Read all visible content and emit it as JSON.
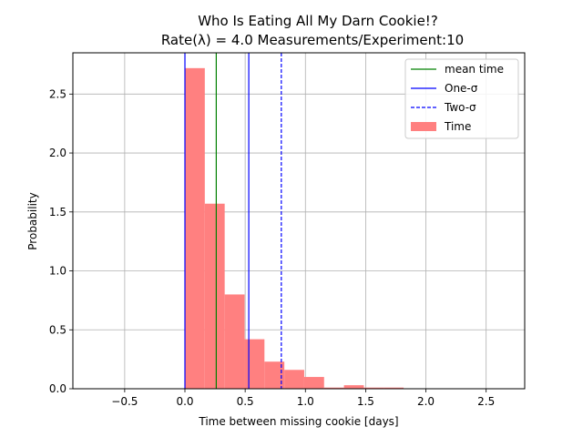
{
  "chart_data": {
    "type": "bar",
    "title": "Who Is Eating All My Darn Cookie!?",
    "subtitle": "Rate(λ) = 4.0  Measurements/Experiment:10",
    "xlabel": "Time between missing cookie [days]",
    "ylabel": "Probability",
    "xlim": [
      -0.93,
      2.82
    ],
    "ylim": [
      0,
      2.85
    ],
    "xticks": [
      -0.5,
      0.0,
      0.5,
      1.0,
      1.5,
      2.0,
      2.5
    ],
    "xtick_labels": [
      "−0.5",
      "0.0",
      "0.5",
      "1.0",
      "1.5",
      "2.0",
      "2.5"
    ],
    "yticks": [
      0.0,
      0.5,
      1.0,
      1.5,
      2.0,
      2.5
    ],
    "ytick_labels": [
      "0.0",
      "0.5",
      "1.0",
      "1.5",
      "2.0",
      "2.5"
    ],
    "grid": true,
    "legend_position": "top-right",
    "histogram": {
      "name": "Time",
      "color": "#ff8080",
      "bin_edges": [
        0.0,
        0.165,
        0.33,
        0.495,
        0.66,
        0.825,
        0.99,
        1.155,
        1.32,
        1.485,
        1.65,
        1.815
      ],
      "values": [
        2.72,
        1.57,
        0.8,
        0.42,
        0.23,
        0.16,
        0.1,
        0.01,
        0.03,
        0.01,
        0.01
      ]
    },
    "vlines": [
      {
        "name": "mean time",
        "x": 0.26,
        "color": "#008000",
        "style": "solid"
      },
      {
        "name": "One-σ",
        "x": 0.0,
        "color": "#0000ff",
        "style": "solid"
      },
      {
        "name": "One-σ",
        "x": 0.53,
        "color": "#0000ff",
        "style": "solid"
      },
      {
        "name": "Two-σ",
        "x": 0.8,
        "color": "#0000ff",
        "style": "dashed"
      }
    ],
    "legend": [
      {
        "label": "mean time",
        "kind": "line",
        "color": "#008000",
        "style": "solid"
      },
      {
        "label": "One-σ",
        "kind": "line",
        "color": "#0000ff",
        "style": "solid"
      },
      {
        "label": "Two-σ",
        "kind": "line",
        "color": "#0000ff",
        "style": "dashed"
      },
      {
        "label": "Time",
        "kind": "patch",
        "color": "#ff8080"
      }
    ]
  }
}
